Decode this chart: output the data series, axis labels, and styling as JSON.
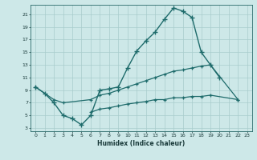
{
  "xlabel": "Humidex (Indice chaleur)",
  "background_color": "#cde8e8",
  "grid_color": "#a8cccc",
  "line_color": "#1e6b6b",
  "xlim": [
    -0.5,
    23.5
  ],
  "ylim": [
    2.5,
    22.5
  ],
  "xticks": [
    0,
    1,
    2,
    3,
    4,
    5,
    6,
    7,
    8,
    9,
    10,
    11,
    12,
    13,
    14,
    15,
    16,
    17,
    18,
    19,
    20,
    21,
    22,
    23
  ],
  "yticks": [
    3,
    5,
    7,
    9,
    11,
    13,
    15,
    17,
    19,
    21
  ],
  "line1_x": [
    0,
    1,
    2,
    3,
    4,
    5,
    6,
    7,
    8,
    9,
    10,
    11,
    12,
    13,
    14,
    15,
    16,
    17,
    18,
    19,
    20
  ],
  "line1_y": [
    9.5,
    8.5,
    7.0,
    5.0,
    4.5,
    3.5,
    5.0,
    9.0,
    9.2,
    9.5,
    12.5,
    15.2,
    16.8,
    18.2,
    20.2,
    22.0,
    21.5,
    20.5,
    15.0,
    13.0,
    11.0
  ],
  "line2_x": [
    0,
    2,
    3,
    6,
    7,
    8,
    9,
    10,
    11,
    12,
    13,
    14,
    15,
    16,
    17,
    18,
    19,
    22
  ],
  "line2_y": [
    9.5,
    7.5,
    7.0,
    7.5,
    8.2,
    8.5,
    9.0,
    9.5,
    10.0,
    10.5,
    11.0,
    11.5,
    12.0,
    12.2,
    12.5,
    12.8,
    13.0,
    7.5
  ],
  "line3_x": [
    6,
    7,
    8,
    9,
    10,
    11,
    12,
    13,
    14,
    15,
    16,
    17,
    18,
    19,
    22
  ],
  "line3_y": [
    5.5,
    6.0,
    6.2,
    6.5,
    6.8,
    7.0,
    7.2,
    7.5,
    7.5,
    7.8,
    7.8,
    8.0,
    8.0,
    8.2,
    7.5
  ]
}
